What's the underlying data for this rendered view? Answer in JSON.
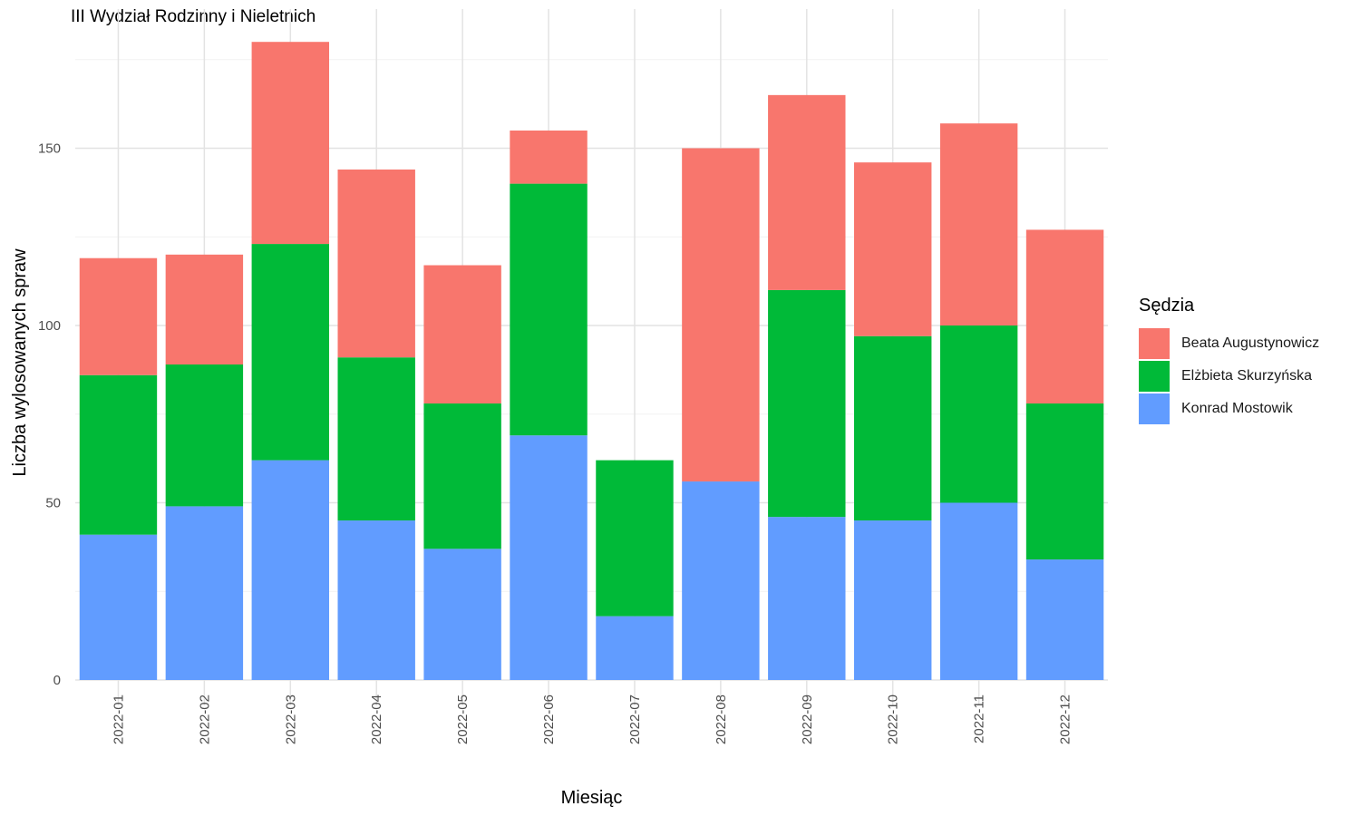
{
  "chart_data": {
    "type": "bar",
    "stacked": true,
    "title": "III Wydział Rodzinny i Nieletnich",
    "xlabel": "Miesiąc",
    "ylabel": "Liczba wylosowanych spraw",
    "ylim": [
      0,
      180
    ],
    "yticks": [
      "0",
      "50",
      "100",
      "150"
    ],
    "grid": true,
    "legend_title": "Sędzia",
    "legend_position": "right",
    "categories": [
      "2022-01",
      "2022-02",
      "2022-03",
      "2022-04",
      "2022-05",
      "2022-06",
      "2022-07",
      "2022-08",
      "2022-09",
      "2022-10",
      "2022-11",
      "2022-12"
    ],
    "series": [
      {
        "name": "Konrad Mostowik",
        "color": "#619CFF",
        "values": [
          41,
          49,
          62,
          45,
          37,
          69,
          18,
          56,
          46,
          45,
          50,
          34
        ]
      },
      {
        "name": "Elżbieta Skurzyńska",
        "color": "#00BA38",
        "values": [
          45,
          40,
          61,
          46,
          41,
          71,
          44,
          0,
          64,
          52,
          50,
          44
        ]
      },
      {
        "name": "Beata Augustynowicz",
        "color": "#F8766D",
        "values": [
          33,
          31,
          57,
          53,
          39,
          15,
          0,
          94,
          55,
          49,
          57,
          49
        ]
      }
    ],
    "legend_order": [
      "Beata Augustynowicz",
      "Elżbieta Skurzyńska",
      "Konrad Mostowik"
    ]
  }
}
